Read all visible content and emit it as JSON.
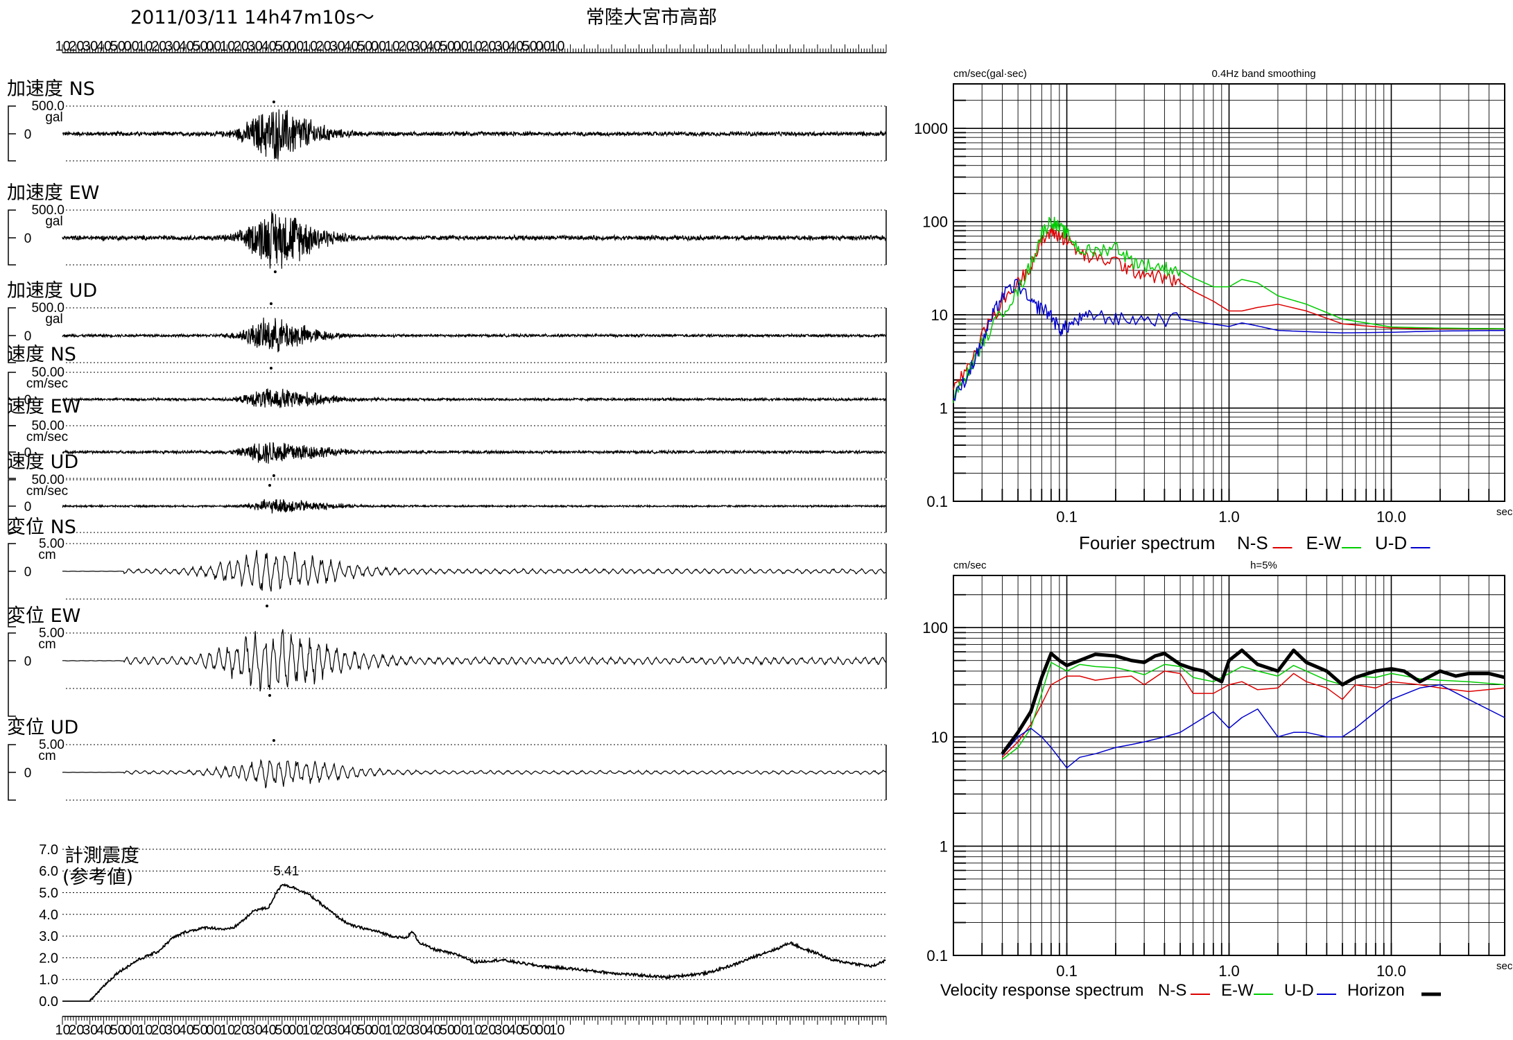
{
  "header": {
    "datetime": "2011/03/11  14h47m10s〜",
    "station": "常陸大宮市高部"
  },
  "time_ticks": [
    "10",
    "20",
    "30",
    "40",
    "50",
    "00",
    "10",
    "20",
    "30",
    "40",
    "50",
    "00",
    "10",
    "20",
    "30",
    "40",
    "50",
    "00",
    "10",
    "20",
    "30",
    "40",
    "50",
    "00",
    "10",
    "20",
    "30",
    "40",
    "50",
    "00",
    "10",
    "20",
    "30",
    "40",
    "50",
    "00",
    "10"
  ],
  "chart_data": [
    {
      "type": "line",
      "id": "waveforms",
      "panels": [
        {
          "title": "加速度 NS",
          "scale": "500.0",
          "unit": "gal",
          "zero": "0",
          "peak_time_s": 154,
          "peak_dir": "up"
        },
        {
          "title": "加速度 EW",
          "scale": "500.0",
          "unit": "gal",
          "zero": "0",
          "peak_time_s": 155,
          "peak_dir": "down"
        },
        {
          "title": "加速度 UD",
          "scale": "500.0",
          "unit": "gal",
          "zero": "0",
          "peak_time_s": 152,
          "peak_dir": "up"
        },
        {
          "title": "速度 NS",
          "scale": "50.00",
          "unit": "cm/sec",
          "zero": "0",
          "peak_time_s": 152,
          "peak_dir": "up"
        },
        {
          "title": "速度 EW",
          "scale": "50.00",
          "unit": "cm/sec",
          "zero": "0",
          "peak_time_s": 151,
          "peak_dir": "down"
        },
        {
          "title": "速度 UD",
          "scale": "50.00",
          "unit": "cm/sec",
          "zero": "0",
          "peak_time_s": 154,
          "peak_dir": "up"
        },
        {
          "title": "変位 NS",
          "scale": "5.00",
          "unit": "cm",
          "zero": "0",
          "peak_time_s": 149,
          "peak_dir": "down"
        },
        {
          "title": "変位 EW",
          "scale": "5.00",
          "unit": "cm",
          "zero": "0",
          "peak_time_s": 151,
          "peak_dir": "down"
        },
        {
          "title": "変位 UD",
          "scale": "5.00",
          "unit": "cm",
          "zero": "0",
          "peak_time_s": 154,
          "peak_dir": "up"
        }
      ]
    },
    {
      "type": "line",
      "id": "intensity",
      "title": "計測震度",
      "subtitle": "(参考値)",
      "ylim": [
        0,
        7
      ],
      "yticks": [
        "0.0",
        "1.0",
        "2.0",
        "3.0",
        "4.0",
        "5.0",
        "6.0",
        "7.0"
      ],
      "peak_label": "5.41",
      "x_s": [
        0,
        20,
        30,
        40,
        55,
        70,
        80,
        90,
        105,
        120,
        125,
        135,
        140,
        150,
        155,
        160,
        170,
        180,
        190,
        200,
        210,
        230,
        240,
        250,
        255,
        260,
        270,
        290,
        300,
        320,
        340,
        350,
        370,
        400,
        440,
        470,
        490,
        510,
        520,
        530,
        540,
        550,
        560,
        570,
        590,
        600
      ],
      "values": [
        0,
        0,
        0.7,
        1.3,
        1.9,
        2.3,
        2.9,
        3.2,
        3.4,
        3.3,
        3.4,
        3.9,
        4.2,
        4.3,
        4.9,
        5.4,
        5.2,
        4.9,
        4.4,
        3.9,
        3.5,
        3.2,
        3.0,
        2.9,
        3.2,
        2.7,
        2.4,
        2.1,
        1.8,
        1.9,
        1.7,
        1.6,
        1.5,
        1.3,
        1.1,
        1.3,
        1.7,
        2.2,
        2.4,
        2.7,
        2.4,
        2.2,
        1.9,
        1.8,
        1.6,
        1.9
      ]
    },
    {
      "type": "line",
      "id": "fourier",
      "title": "Fourier spectrum",
      "yunit": "cm/sec(gal·sec)",
      "note": "0.4Hz band smoothing",
      "xunit": "sec",
      "log_x": true,
      "log_y": true,
      "xlim": [
        0.02,
        50
      ],
      "ylim": [
        0.1,
        3000
      ],
      "xticks": [
        "0.1",
        "1.0",
        "10.0"
      ],
      "yticks": [
        "0.1",
        "1",
        "10",
        "100",
        "1000"
      ],
      "series": [
        {
          "name": "N-S",
          "color": "#dd0000",
          "x": [
            0.02,
            0.025,
            0.03,
            0.04,
            0.05,
            0.06,
            0.07,
            0.08,
            0.09,
            0.1,
            0.12,
            0.15,
            0.2,
            0.25,
            0.3,
            0.4,
            0.5,
            0.6,
            0.8,
            1.0,
            1.2,
            1.5,
            2.0,
            3.0,
            5.0,
            10,
            20,
            50
          ],
          "y": [
            1.5,
            3,
            6,
            14,
            22,
            35,
            60,
            80,
            70,
            65,
            45,
            40,
            38,
            30,
            28,
            25,
            22,
            18,
            14,
            11,
            11,
            12,
            13,
            11,
            8,
            7.2,
            7.1,
            7.1
          ]
        },
        {
          "name": "E-W",
          "color": "#00cc00",
          "x": [
            0.02,
            0.025,
            0.03,
            0.04,
            0.05,
            0.06,
            0.07,
            0.08,
            0.09,
            0.1,
            0.12,
            0.15,
            0.2,
            0.25,
            0.3,
            0.4,
            0.5,
            0.6,
            0.8,
            1.0,
            1.2,
            1.5,
            2.0,
            3.0,
            5.0,
            10,
            20,
            50
          ],
          "y": [
            1.3,
            2.5,
            5,
            11,
            18,
            35,
            75,
            105,
            85,
            75,
            50,
            48,
            55,
            38,
            35,
            32,
            30,
            25,
            20,
            20,
            24,
            22,
            16,
            13,
            9,
            7.4,
            7.2,
            7.1
          ]
        },
        {
          "name": "U-D",
          "color": "#0000cc",
          "x": [
            0.02,
            0.025,
            0.03,
            0.035,
            0.04,
            0.05,
            0.06,
            0.07,
            0.08,
            0.09,
            0.1,
            0.12,
            0.15,
            0.2,
            0.3,
            0.5,
            0.7,
            1.0,
            1.2,
            1.5,
            2.0,
            3.0,
            5.0,
            10,
            20,
            50
          ],
          "y": [
            1.2,
            2.5,
            5,
            10,
            16,
            22,
            13,
            12,
            10,
            7,
            7.5,
            9,
            10,
            9,
            9,
            9,
            8.2,
            7.5,
            8.2,
            7.6,
            6.8,
            6.6,
            6.4,
            6.5,
            6.7,
            6.8
          ]
        }
      ]
    },
    {
      "type": "line",
      "id": "velocity_response",
      "title": "Velocity response spectrum",
      "yunit": "cm/sec",
      "note": "h=5%",
      "xunit": "sec",
      "log_x": true,
      "log_y": true,
      "xlim": [
        0.02,
        50
      ],
      "ylim": [
        0.1,
        300
      ],
      "xticks": [
        "0.1",
        "1.0",
        "10.0"
      ],
      "yticks": [
        "0.1",
        "1",
        "10",
        "100"
      ],
      "series": [
        {
          "name": "N-S",
          "color": "#dd0000",
          "x": [
            0.04,
            0.05,
            0.06,
            0.07,
            0.08,
            0.1,
            0.12,
            0.15,
            0.2,
            0.25,
            0.3,
            0.4,
            0.5,
            0.6,
            0.8,
            1.0,
            1.2,
            1.5,
            2.0,
            2.5,
            3.0,
            4.0,
            5.0,
            6.0,
            8.0,
            10,
            15,
            20,
            30,
            50
          ],
          "y": [
            6.5,
            9,
            13,
            20,
            30,
            36,
            36,
            33,
            35,
            36,
            30,
            40,
            38,
            25,
            25,
            30,
            32,
            27,
            28,
            38,
            32,
            28,
            22,
            30,
            28,
            32,
            30,
            28,
            26,
            28
          ]
        },
        {
          "name": "E-W",
          "color": "#00cc00",
          "x": [
            0.04,
            0.05,
            0.06,
            0.07,
            0.08,
            0.1,
            0.12,
            0.15,
            0.2,
            0.25,
            0.3,
            0.4,
            0.5,
            0.6,
            0.8,
            1.0,
            1.2,
            1.5,
            2.0,
            2.5,
            3.0,
            4.0,
            5.0,
            6.0,
            8.0,
            10,
            15,
            20,
            30,
            50
          ],
          "y": [
            6.2,
            8,
            12,
            25,
            48,
            40,
            46,
            44,
            43,
            40,
            37,
            46,
            44,
            35,
            32,
            38,
            44,
            40,
            36,
            45,
            40,
            33,
            30,
            36,
            35,
            38,
            34,
            33,
            32,
            30
          ]
        },
        {
          "name": "U-D",
          "color": "#0000cc",
          "x": [
            0.04,
            0.05,
            0.06,
            0.07,
            0.08,
            0.1,
            0.12,
            0.15,
            0.2,
            0.25,
            0.3,
            0.4,
            0.5,
            0.6,
            0.8,
            1.0,
            1.2,
            1.5,
            2.0,
            2.5,
            3.0,
            4.0,
            5.0,
            6.0,
            8.0,
            10,
            15,
            20,
            30,
            50
          ],
          "y": [
            6.8,
            10,
            12,
            10,
            8,
            5.2,
            6.5,
            7,
            8,
            8.5,
            9,
            10,
            11,
            13,
            17,
            12,
            15,
            18,
            10,
            11,
            11,
            10,
            10,
            12,
            17,
            22,
            28,
            30,
            22,
            15
          ]
        },
        {
          "name": "Horizon",
          "color": "#000000",
          "x": [
            0.04,
            0.05,
            0.06,
            0.07,
            0.08,
            0.09,
            0.1,
            0.12,
            0.15,
            0.2,
            0.25,
            0.3,
            0.35,
            0.4,
            0.5,
            0.6,
            0.7,
            0.8,
            0.9,
            1.0,
            1.2,
            1.5,
            2.0,
            2.5,
            3.0,
            4.0,
            5.0,
            6.0,
            8.0,
            10,
            12,
            15,
            20,
            25,
            30,
            40,
            50
          ],
          "y": [
            7,
            11,
            17,
            35,
            58,
            50,
            45,
            50,
            57,
            55,
            50,
            48,
            55,
            58,
            46,
            42,
            40,
            35,
            32,
            50,
            62,
            46,
            40,
            62,
            48,
            40,
            30,
            35,
            40,
            42,
            40,
            32,
            40,
            36,
            38,
            38,
            35
          ]
        }
      ]
    }
  ]
}
